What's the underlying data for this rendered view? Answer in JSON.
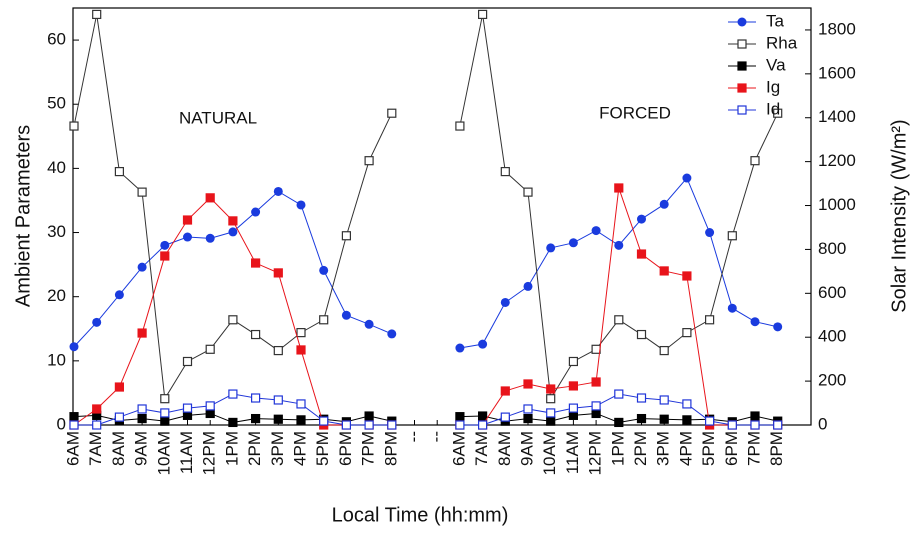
{
  "chart_data": {
    "type": "line",
    "xlabel": "Local Time (hh:mm)",
    "ylabel": "Ambient Parameters",
    "y2label": "Solar Intensity (W/m²)",
    "annotations": [
      "NATURAL",
      "FORCED"
    ],
    "categories": [
      "6AM",
      "7AM",
      "8AM",
      "9AM",
      "10AM",
      "11AM",
      "12PM",
      "1PM",
      "2PM",
      "3PM",
      "4PM",
      "5PM",
      "6PM",
      "7PM",
      "8PM",
      "--",
      "--",
      "6AM",
      "7AM",
      "8AM",
      "9AM",
      "10AM",
      "11AM",
      "12PM",
      "1PM",
      "2PM",
      "3PM",
      "4PM",
      "5PM",
      "6PM",
      "7PM",
      "8PM"
    ],
    "ylim": [
      0,
      65
    ],
    "yticks": [
      0,
      10,
      20,
      30,
      40,
      50,
      60
    ],
    "y2lim": [
      0,
      1900
    ],
    "y2ticks": [
      0,
      200,
      400,
      600,
      800,
      1000,
      1200,
      1400,
      1600,
      1800
    ],
    "legend": "upper right",
    "series": [
      {
        "name": "Ta",
        "color": "#1a3bde",
        "marker": "circle",
        "axis": "y",
        "values": [
          12.2,
          16,
          20.3,
          24.6,
          28,
          29.3,
          29.1,
          30.1,
          33.2,
          36.4,
          34.3,
          24.1,
          17.1,
          15.7,
          14.2,
          null,
          null,
          12,
          12.6,
          19.1,
          21.6,
          27.6,
          28.4,
          30.3,
          28,
          32.1,
          34.4,
          38.5,
          30,
          18.2,
          16.1,
          15.3
        ]
      },
      {
        "name": "Rha",
        "color": "#333333",
        "marker": "square-open",
        "axis": "y",
        "values": [
          46.6,
          64,
          39.5,
          36.3,
          4.1,
          9.9,
          11.8,
          16.4,
          14.1,
          11.6,
          14.4,
          16.4,
          29.5,
          41.2,
          48.6,
          null,
          null,
          46.6,
          64,
          39.5,
          36.3,
          4.1,
          9.9,
          11.8,
          16.4,
          14.1,
          11.6,
          14.4,
          16.4,
          29.5,
          41.2,
          48.6
        ]
      },
      {
        "name": "Va",
        "color": "#000000",
        "marker": "square",
        "axis": "y",
        "values": [
          1.3,
          1.5,
          0.7,
          1,
          0.6,
          1.5,
          1.8,
          0.4,
          1,
          0.9,
          0.8,
          0.9,
          0.5,
          1.4,
          0.6,
          null,
          null,
          1.3,
          1.4,
          0.6,
          1,
          0.6,
          1.5,
          1.8,
          0.4,
          1,
          0.9,
          0.8,
          0.9,
          0.5,
          1.4,
          0.6
        ]
      },
      {
        "name": "Ig",
        "color": "#e8141b",
        "marker": "square",
        "axis": "y2",
        "values": [
          0,
          73,
          173,
          419,
          770,
          934,
          1035,
          930,
          738,
          693,
          342,
          0,
          0,
          0,
          0,
          null,
          null,
          0,
          0,
          155,
          187,
          164,
          178,
          196,
          1080,
          779,
          702,
          679,
          0,
          0,
          0,
          0
        ]
      },
      {
        "name": "Id",
        "color": "#2035d8",
        "marker": "square-open",
        "axis": "y2",
        "values": [
          0,
          0,
          36,
          73,
          55,
          77,
          87,
          141,
          123,
          114,
          96,
          18,
          0,
          0,
          0,
          null,
          null,
          0,
          0,
          36,
          73,
          55,
          77,
          87,
          141,
          123,
          114,
          96,
          18,
          0,
          0,
          0
        ]
      }
    ]
  }
}
